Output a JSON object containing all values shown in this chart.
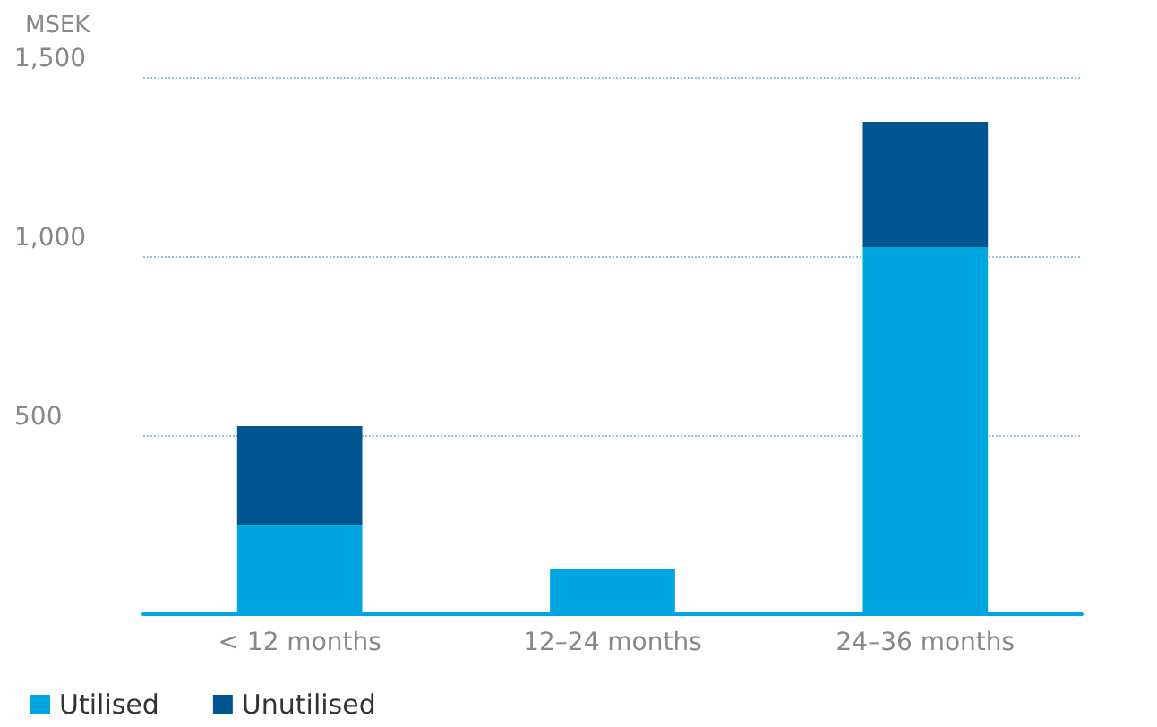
{
  "chart_data": {
    "type": "bar",
    "ylabel": "MSEK",
    "categories": [
      "< 12 months",
      "12–24 months",
      "24–36 months"
    ],
    "series": [
      {
        "name": "Utilised",
        "color": "#00a6e0",
        "values": [
          250,
          125,
          1025
        ]
      },
      {
        "name": "Unutilised",
        "color": "#005691",
        "values": [
          275,
          0,
          350
        ]
      }
    ],
    "stacked": true,
    "ylim": [
      0,
      1500
    ],
    "yticks": [
      {
        "value": 500,
        "label": "500"
      },
      {
        "value": 1000,
        "label": "1,000"
      },
      {
        "value": 1500,
        "label": "1,500"
      }
    ],
    "grid": "y",
    "legend": "bottom left"
  }
}
